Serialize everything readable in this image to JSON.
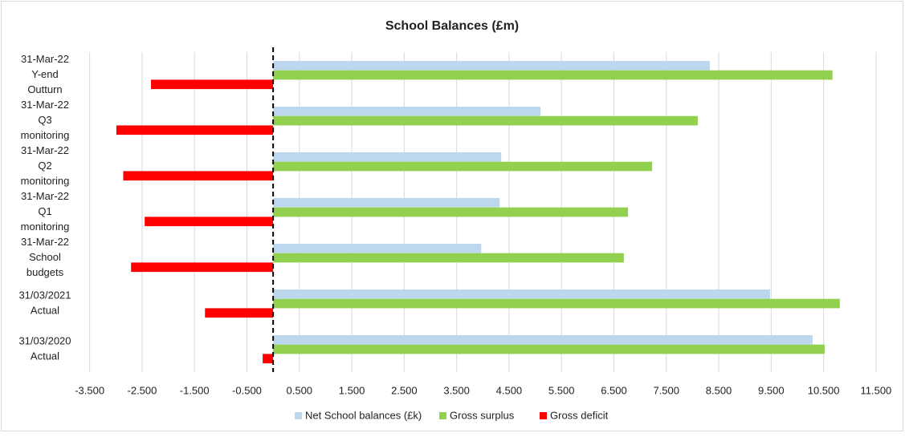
{
  "chart_data": {
    "type": "bar",
    "orientation": "horizontal",
    "title": "School Balances (£m)",
    "categories": [
      [
        "31-Mar-22",
        "Y-end",
        "Outturn"
      ],
      [
        "31-Mar-22",
        "Q3",
        "monitoring"
      ],
      [
        "31-Mar-22",
        "Q2",
        "monitoring"
      ],
      [
        "31-Mar-22",
        "Q1",
        "monitoring"
      ],
      [
        "31-Mar-22",
        "School",
        "budgets"
      ],
      [
        "31/03/2021",
        "Actual"
      ],
      [
        "31/03/2020",
        "Actual"
      ]
    ],
    "series": [
      {
        "name": "Net School balances (£k)",
        "color": "#bdd7ee",
        "values": [
          8.33,
          5.1,
          4.35,
          4.32,
          3.97,
          9.48,
          10.29
        ]
      },
      {
        "name": "Gross surplus",
        "color": "#92d050",
        "values": [
          10.67,
          8.1,
          7.23,
          6.77,
          6.69,
          10.81,
          10.52
        ]
      },
      {
        "name": "Gross deficit",
        "color": "#ff0000",
        "values": [
          -2.33,
          -2.99,
          -2.86,
          -2.45,
          -2.71,
          -1.3,
          -0.2
        ]
      }
    ],
    "xlim": [
      -4,
      11.9
    ],
    "xticks": [
      {
        "value": -3.5,
        "label": "-3.500"
      },
      {
        "value": -2.5,
        "label": "-2.500"
      },
      {
        "value": -1.5,
        "label": "-1.500"
      },
      {
        "value": -0.5,
        "label": "-0.500"
      },
      {
        "value": 0.5,
        "label": "0.500"
      },
      {
        "value": 1.5,
        "label": "1.500"
      },
      {
        "value": 2.5,
        "label": "2.500"
      },
      {
        "value": 3.5,
        "label": "3.500"
      },
      {
        "value": 4.5,
        "label": "4.500"
      },
      {
        "value": 5.5,
        "label": "5.500"
      },
      {
        "value": 6.5,
        "label": "6.500"
      },
      {
        "value": 7.5,
        "label": "7.500"
      },
      {
        "value": 8.5,
        "label": "8.500"
      },
      {
        "value": 9.5,
        "label": "9.500"
      },
      {
        "value": 10.5,
        "label": "10.500"
      },
      {
        "value": 11.5,
        "label": "11.500"
      }
    ],
    "grid": true,
    "legend": "bottom"
  }
}
